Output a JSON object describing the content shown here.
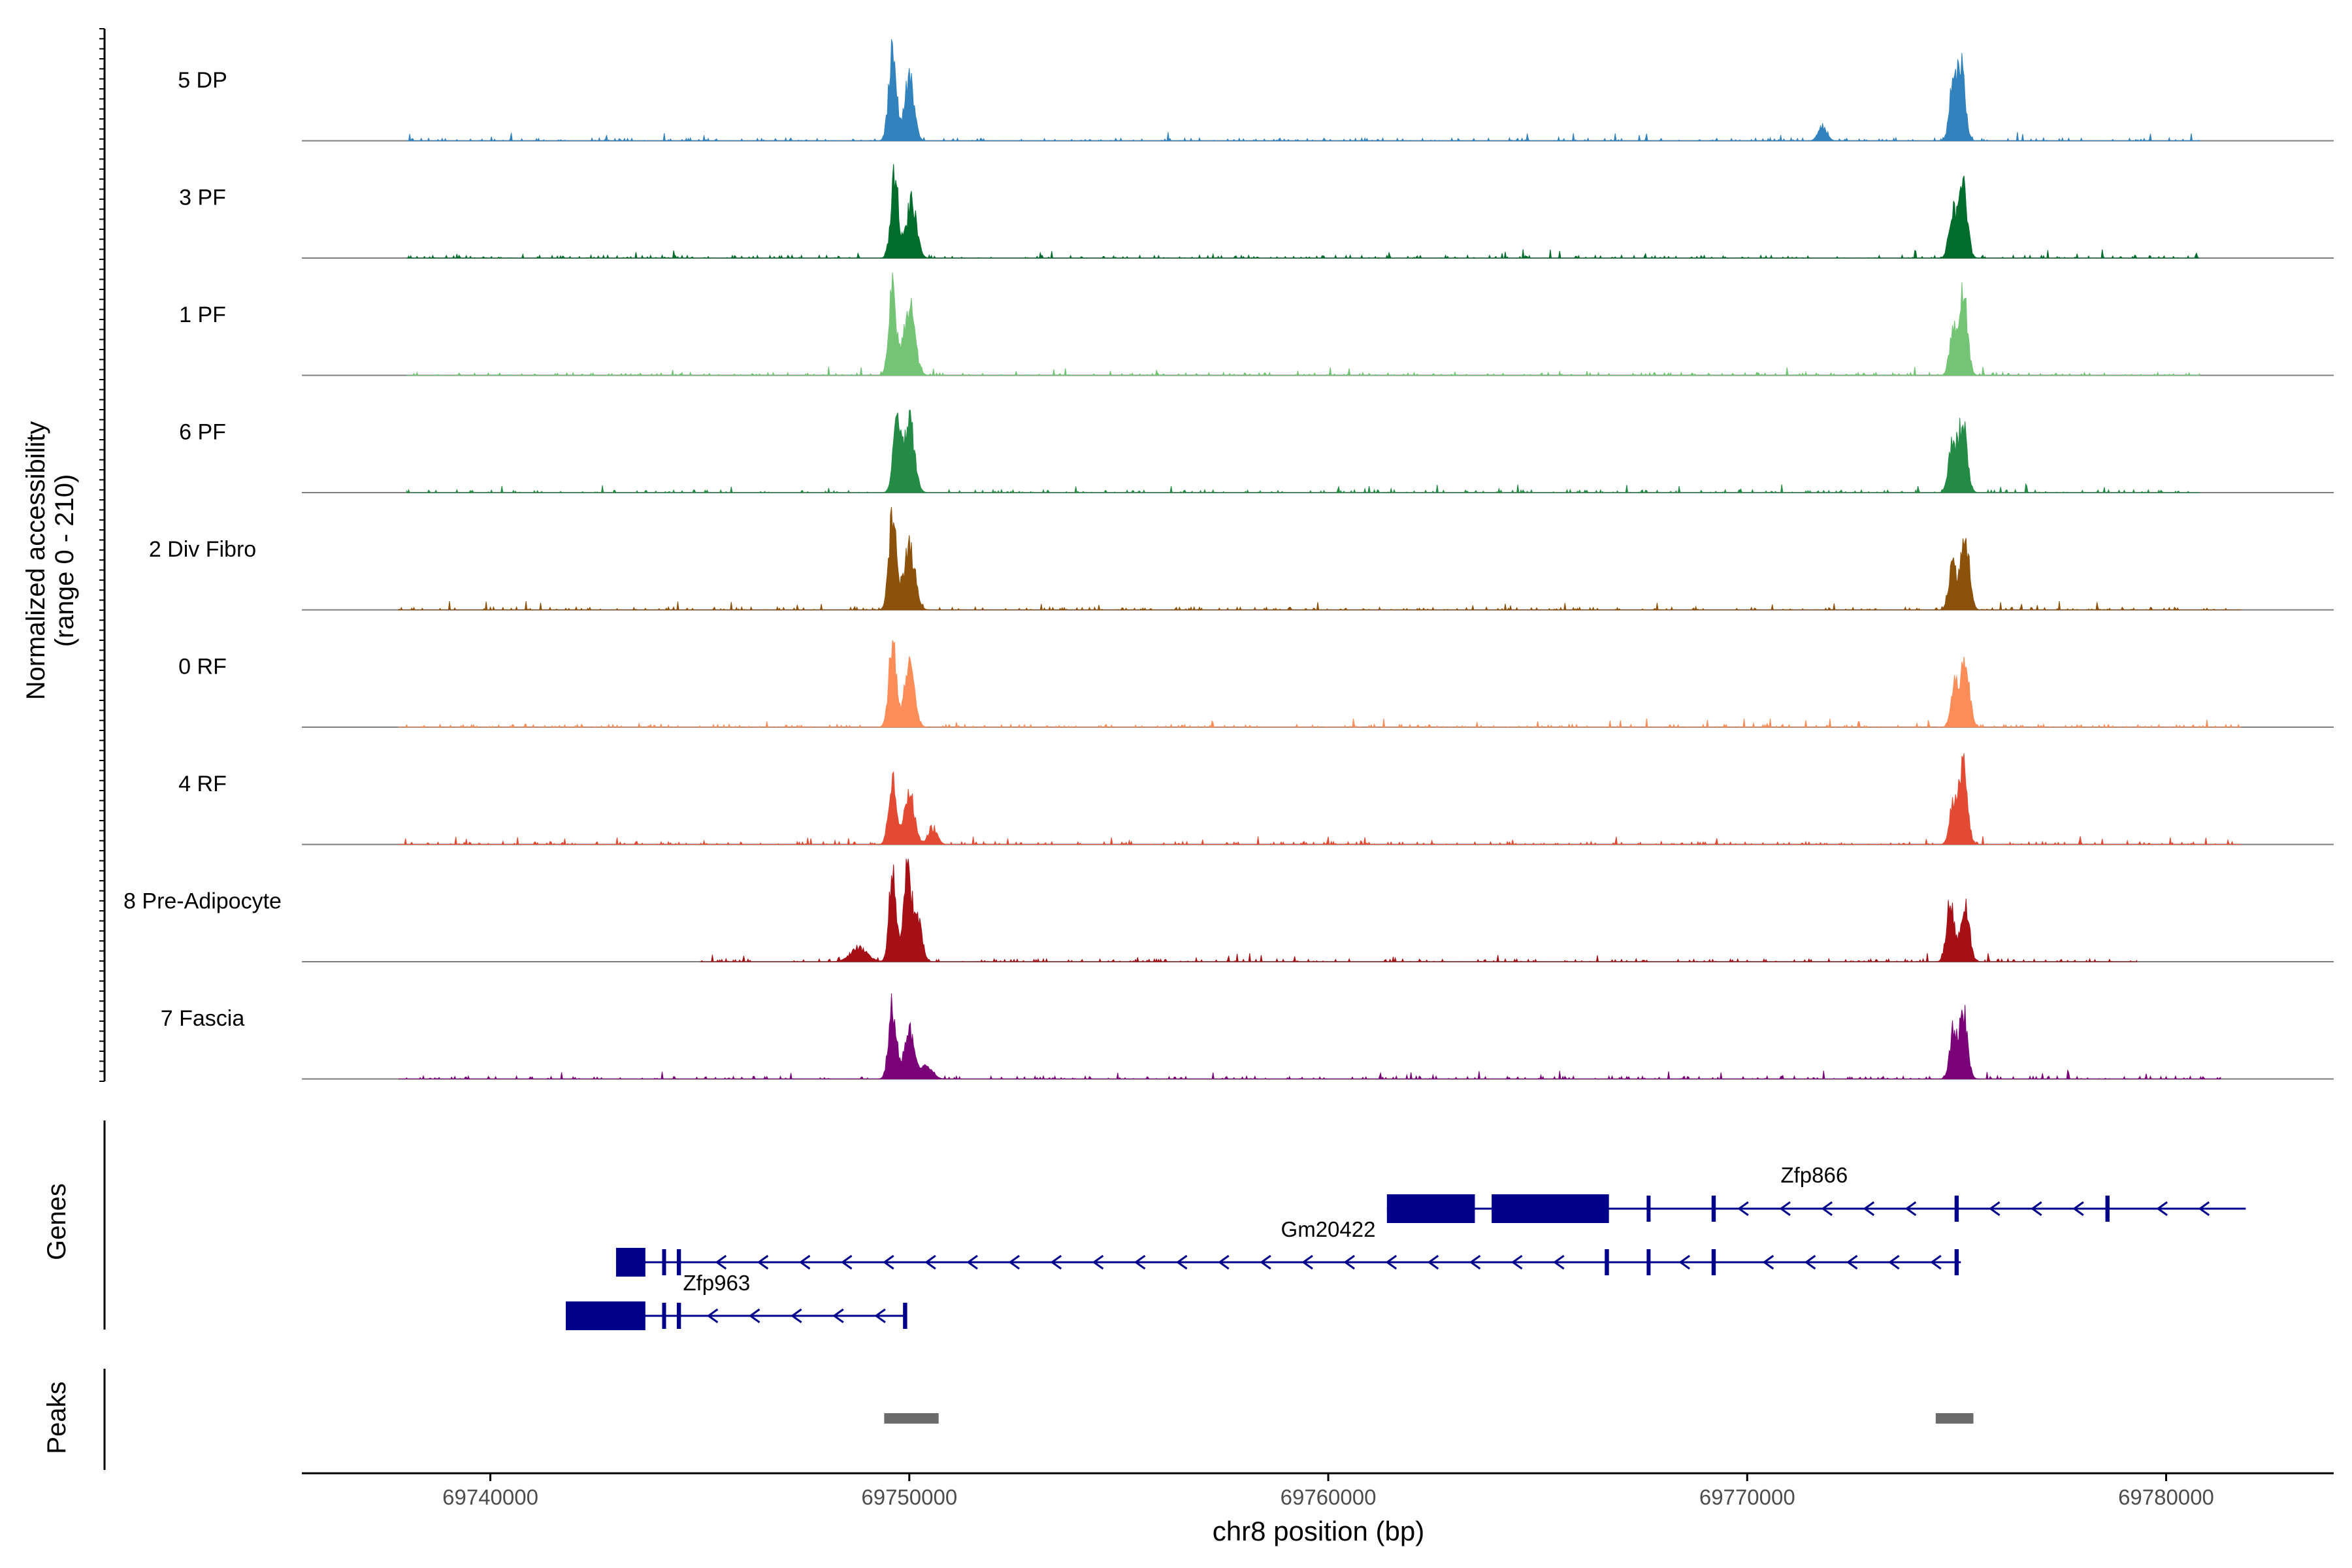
{
  "chart_data": {
    "type": "area",
    "ylabel_line1": "Normalized accessibility",
    "ylabel_line2": "(range 0 - 210)",
    "ylim": [
      0,
      210
    ],
    "xlabel": "chr8 position (bp)",
    "xlim": [
      69735500,
      69784000
    ],
    "xticks": [
      {
        "value": 69740000,
        "label": "69740000"
      },
      {
        "value": 69750000,
        "label": "69750000"
      },
      {
        "value": 69760000,
        "label": "69760000"
      },
      {
        "value": 69770000,
        "label": "69770000"
      },
      {
        "value": 69780000,
        "label": "69780000"
      }
    ],
    "tracks": [
      {
        "name": "5 DP",
        "color": "#3182bd",
        "range": [
          69738000,
          69780800
        ],
        "peaks": [
          [
            69749600,
            195,
            90
          ],
          [
            69750000,
            135,
            110
          ],
          [
            69771800,
            32,
            100
          ],
          [
            69774900,
            110,
            80
          ],
          [
            69775100,
            170,
            95
          ]
        ]
      },
      {
        "name": "3 PF",
        "color": "#006d2c",
        "range": [
          69738000,
          69780800
        ],
        "peaks": [
          [
            69749650,
            170,
            90
          ],
          [
            69750050,
            120,
            120
          ],
          [
            69774900,
            100,
            85
          ],
          [
            69775150,
            165,
            100
          ]
        ]
      },
      {
        "name": "1 PF",
        "color": "#74c476",
        "range": [
          69738000,
          69780800
        ],
        "peaks": [
          [
            69749600,
            185,
            90
          ],
          [
            69750000,
            150,
            130
          ],
          [
            69774900,
            90,
            80
          ],
          [
            69775150,
            190,
            100
          ]
        ]
      },
      {
        "name": "6 PF",
        "color": "#238b45",
        "range": [
          69738000,
          69780800
        ],
        "peaks": [
          [
            69749700,
            145,
            90
          ],
          [
            69750000,
            155,
            120
          ],
          [
            69774900,
            110,
            90
          ],
          [
            69775150,
            150,
            100
          ]
        ]
      },
      {
        "name": "2 Div Fibro",
        "color": "#8c510a",
        "range": [
          69737800,
          69781800
        ],
        "peaks": [
          [
            69749600,
            200,
            90
          ],
          [
            69750000,
            140,
            130
          ],
          [
            69774900,
            110,
            85
          ],
          [
            69775200,
            160,
            100
          ]
        ]
      },
      {
        "name": "0 RF",
        "color": "#fc8d59",
        "range": [
          69737800,
          69781800
        ],
        "peaks": [
          [
            69749600,
            180,
            90
          ],
          [
            69750000,
            130,
            120
          ],
          [
            69774950,
            100,
            85
          ],
          [
            69775200,
            150,
            100
          ]
        ]
      },
      {
        "name": "4 RF",
        "color": "#e34a33",
        "range": [
          69737800,
          69781800
        ],
        "peaks": [
          [
            69749600,
            140,
            90
          ],
          [
            69750000,
            110,
            120
          ],
          [
            69750550,
            35,
            110
          ],
          [
            69774900,
            90,
            80
          ],
          [
            69775150,
            185,
            100
          ]
        ]
      },
      {
        "name": "8 Pre-Adipocyte",
        "color": "#a50f15",
        "range": [
          69745000,
          69779300
        ],
        "peaks": [
          [
            69749600,
            205,
            80
          ],
          [
            69749950,
            210,
            90
          ],
          [
            69750200,
            100,
            100
          ],
          [
            69748800,
            30,
            200
          ],
          [
            69774850,
            140,
            90
          ],
          [
            69775200,
            130,
            100
          ]
        ]
      },
      {
        "name": "7 Fascia",
        "color": "#7a0177",
        "range": [
          69737800,
          69781300
        ],
        "peaks": [
          [
            69749600,
            160,
            90
          ],
          [
            69750000,
            110,
            120
          ],
          [
            69750400,
            25,
            150
          ],
          [
            69774900,
            90,
            80
          ],
          [
            69775150,
            150,
            100
          ]
        ]
      }
    ],
    "genes_label": "Genes",
    "gene_color": "#00008b",
    "genes": [
      {
        "name": "Zfp866",
        "start": 69761400,
        "end": 69781900,
        "label_pos": 69771600,
        "exons": [
          [
            69761400,
            69763500
          ],
          [
            69763900,
            69766700
          ],
          [
            69767600,
            69767650
          ],
          [
            69769150,
            69769250
          ],
          [
            69774950,
            69775050
          ],
          [
            69778550,
            69778650
          ]
        ]
      },
      {
        "name": "Gm20422",
        "start": 69743000,
        "end": 69775100,
        "label_pos": 69760000,
        "exons": [
          [
            69743000,
            69743700
          ],
          [
            69744100,
            69744150
          ],
          [
            69744450,
            69744550
          ],
          [
            69766600,
            69766700
          ],
          [
            69767600,
            69767650
          ],
          [
            69769150,
            69769250
          ],
          [
            69774950,
            69775050
          ]
        ]
      },
      {
        "name": "Zfp963",
        "start": 69741800,
        "end": 69749900,
        "label_pos": 69745400,
        "exons": [
          [
            69741800,
            69743700
          ],
          [
            69744100,
            69744150
          ],
          [
            69744450,
            69744550
          ],
          [
            69749850,
            69749950
          ]
        ]
      }
    ],
    "peaks_label": "Peaks",
    "peak_color": "#6b6b6b",
    "peak_regions": [
      [
        69749400,
        69750700
      ],
      [
        69774500,
        69775400
      ]
    ]
  }
}
